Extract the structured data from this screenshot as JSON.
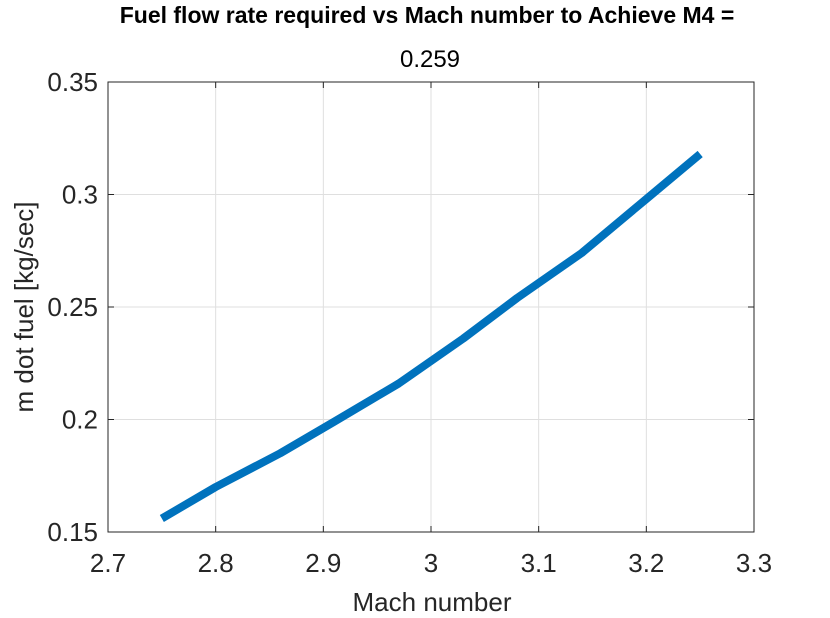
{
  "chart_data": {
    "type": "line",
    "title": "Fuel flow rate required vs Mach number to Achieve M4 =",
    "subtitle": "0.259",
    "xlabel": "Mach number",
    "ylabel": "m dot fuel [kg/sec]",
    "xlim": [
      2.7,
      3.3
    ],
    "ylim": [
      0.15,
      0.35
    ],
    "xticks": [
      2.7,
      2.8,
      2.9,
      3.0,
      3.1,
      3.2,
      3.3
    ],
    "xtick_labels": [
      "2.7",
      "2.8",
      "2.9",
      "3",
      "3.1",
      "3.2",
      "3.3"
    ],
    "yticks": [
      0.15,
      0.2,
      0.25,
      0.3,
      0.35
    ],
    "ytick_labels": [
      "0.15",
      "0.2",
      "0.25",
      "0.3",
      "0.35"
    ],
    "grid": true,
    "series": [
      {
        "color": "#0072BD",
        "x": [
          2.75,
          2.8,
          2.86,
          2.91,
          2.97,
          3.03,
          3.08,
          3.14,
          3.2,
          3.25
        ],
        "y": [
          0.156,
          0.17,
          0.185,
          0.199,
          0.216,
          0.236,
          0.254,
          0.274,
          0.298,
          0.318
        ]
      }
    ]
  }
}
